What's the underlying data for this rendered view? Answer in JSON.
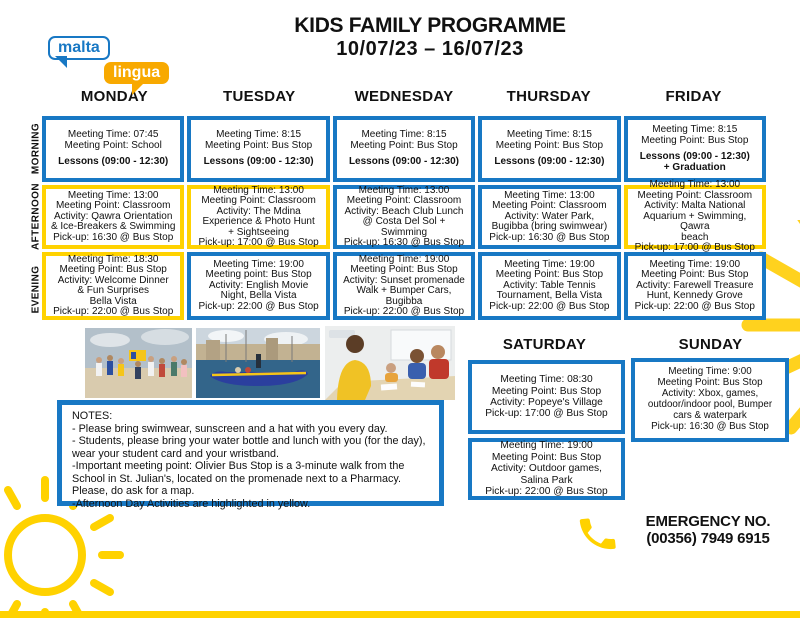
{
  "colors": {
    "blue": "#1878C4",
    "yellow": "#FFD200",
    "logo_orange": "#F8A900"
  },
  "logo": {
    "top": "malta",
    "bottom": "lingua"
  },
  "title": {
    "line1": "KIDS FAMILY PROGRAMME",
    "line2": "10/07/23 – 16/07/23"
  },
  "row_labels": [
    "MORNING",
    "AFTERNOON",
    "EVENING"
  ],
  "days": [
    {
      "name": "MONDAY",
      "cells": [
        {
          "border": "blue",
          "lines": [
            "Meeting Time: 07:45",
            "Meeting Point: School"
          ],
          "bold_lines": [
            "Lessons (09:00 - 12:30)"
          ]
        },
        {
          "border": "yellow",
          "lines": [
            "Meeting Time: 13:00",
            "Meeting Point: Classroom",
            "Activity: Qawra Orientation",
            "& Ice-Breakers & Swimming",
            "Pick-up: 16:30 @ Bus Stop"
          ],
          "bold_lines": []
        },
        {
          "border": "yellow",
          "lines": [
            "Meeting Time: 18:30",
            "Meeting Point: Bus Stop",
            "Activity: Welcome Dinner",
            "& Fun Surprises",
            "Bella Vista",
            "Pick-up: 22:00 @ Bus Stop"
          ],
          "bold_lines": []
        }
      ]
    },
    {
      "name": "TUESDAY",
      "cells": [
        {
          "border": "blue",
          "lines": [
            "Meeting Time: 8:15",
            "Meeting Point: Bus Stop"
          ],
          "bold_lines": [
            "Lessons (09:00 - 12:30)"
          ]
        },
        {
          "border": "yellow",
          "lines": [
            "Meeting Time: 13:00",
            "Meeting Point: Classroom",
            "Activity: The Mdina",
            "Experience & Photo Hunt",
            "+ Sightseeing",
            "Pick-up: 17:00 @ Bus Stop"
          ],
          "bold_lines": []
        },
        {
          "border": "blue",
          "lines": [
            "Meeting Time: 19:00",
            "Meeting point: Bus Stop",
            "Activity: English Movie",
            "Night, Bella Vista",
            "Pick-up: 22:00 @ Bus Stop"
          ],
          "bold_lines": []
        }
      ]
    },
    {
      "name": "WEDNESDAY",
      "cells": [
        {
          "border": "blue",
          "lines": [
            "Meeting Time: 8:15",
            "Meeting Point: Bus Stop"
          ],
          "bold_lines": [
            "Lessons (09:00 - 12:30)"
          ]
        },
        {
          "border": "blue",
          "lines": [
            "Meeting Time: 13:00",
            "Meeting Point: Classroom",
            "Activity: Beach Club Lunch",
            "@ Costa Del Sol +",
            "Swimming",
            "Pick-up: 16:30 @ Bus Stop"
          ],
          "bold_lines": []
        },
        {
          "border": "blue",
          "lines": [
            "Meeting Time: 19:00",
            "Meeting Point: Bus Stop",
            "Activity: Sunset promenade",
            "Walk + Bumper Cars,",
            "Bugibba",
            "Pick-up: 22:00 @ Bus Stop"
          ],
          "bold_lines": []
        }
      ]
    },
    {
      "name": "THURSDAY",
      "cells": [
        {
          "border": "blue",
          "lines": [
            "Meeting Time: 8:15",
            "Meeting Point: Bus Stop"
          ],
          "bold_lines": [
            "Lessons (09:00 - 12:30)"
          ]
        },
        {
          "border": "blue",
          "lines": [
            "Meeting Time: 13:00",
            "Meeting Point: Classroom",
            "Activity: Water Park,",
            "Bugibba (bring swimwear)",
            "Pick-up: 16:30 @ Bus Stop"
          ],
          "bold_lines": []
        },
        {
          "border": "blue",
          "lines": [
            "Meeting Time: 19:00",
            "Meeting Point: Bus Stop",
            "Activity: Table Tennis",
            "Tournament, Bella Vista",
            "Pick-up: 22:00 @ Bus Stop"
          ],
          "bold_lines": []
        }
      ]
    },
    {
      "name": "FRIDAY",
      "cells": [
        {
          "border": "blue",
          "lines": [
            "Meeting Time: 8:15",
            "Meeting Point: Bus Stop"
          ],
          "bold_lines": [
            "Lessons (09:00 - 12:30)",
            "+ Graduation"
          ]
        },
        {
          "border": "yellow",
          "lines": [
            "Meeting Time: 13:00",
            "Meeting Point: Classroom",
            "Activity: Malta National",
            "Aquarium + Swimming, Qawra",
            "beach",
            "Pick-up: 17:00 @ Bus Stop"
          ],
          "bold_lines": []
        },
        {
          "border": "blue",
          "lines": [
            "Meeting Time: 19:00",
            "Meeting Point: Bus Stop",
            "Activity: Farewell Treasure",
            "Hunt, Kennedy Grove",
            "Pick-up: 22:00 @ Bus Stop"
          ],
          "bold_lines": []
        }
      ]
    }
  ],
  "weekend": {
    "saturday": {
      "name": "SATURDAY",
      "cells": [
        {
          "border": "blue",
          "lines": [
            "Meeting Time: 08:30",
            "Meeting Point: Bus Stop",
            "Activity: Popeye's Village",
            "Pick-up: 17:00 @ Bus Stop"
          ]
        },
        {
          "border": "blue",
          "lines": [
            "Meeting Time: 19:00",
            "Meeting Point: Bus Stop",
            "Activity: Outdoor games,",
            "Salina Park",
            "Pick-up: 22:00 @ Bus Stop"
          ]
        }
      ]
    },
    "sunday": {
      "name": "SUNDAY",
      "cells": [
        {
          "border": "blue",
          "lines": [
            "Meeting Time: 9:00",
            "Meeting Point: Bus Stop",
            "Activity: Xbox, games,",
            "outdoor/indoor pool, Bumper",
            "cars & waterpark",
            "Pick-up: 16:30 @ Bus Stop"
          ]
        }
      ]
    }
  },
  "photos": [
    {
      "name": "beach-group-photo"
    },
    {
      "name": "harbour-boats-photo"
    },
    {
      "name": "classroom-photo"
    }
  ],
  "notes": {
    "heading": "NOTES:",
    "lines": [
      "- Please bring swimwear, sunscreen and a hat with you every day.",
      "- Students, please bring your water bottle and lunch with you (for the day),",
      "wear your student card and your wristband.",
      "-Important meeting point: Olivier Bus Stop is a 3-minute walk from the School in St. Julian's, located on the promenade next to a Pharmacy. Please, do ask for a map.",
      "-Afternoon Day Activities are highlighted in yellow."
    ]
  },
  "emergency": {
    "label": "EMERGENCY NO.",
    "number": "(00356) 7949 6915"
  }
}
